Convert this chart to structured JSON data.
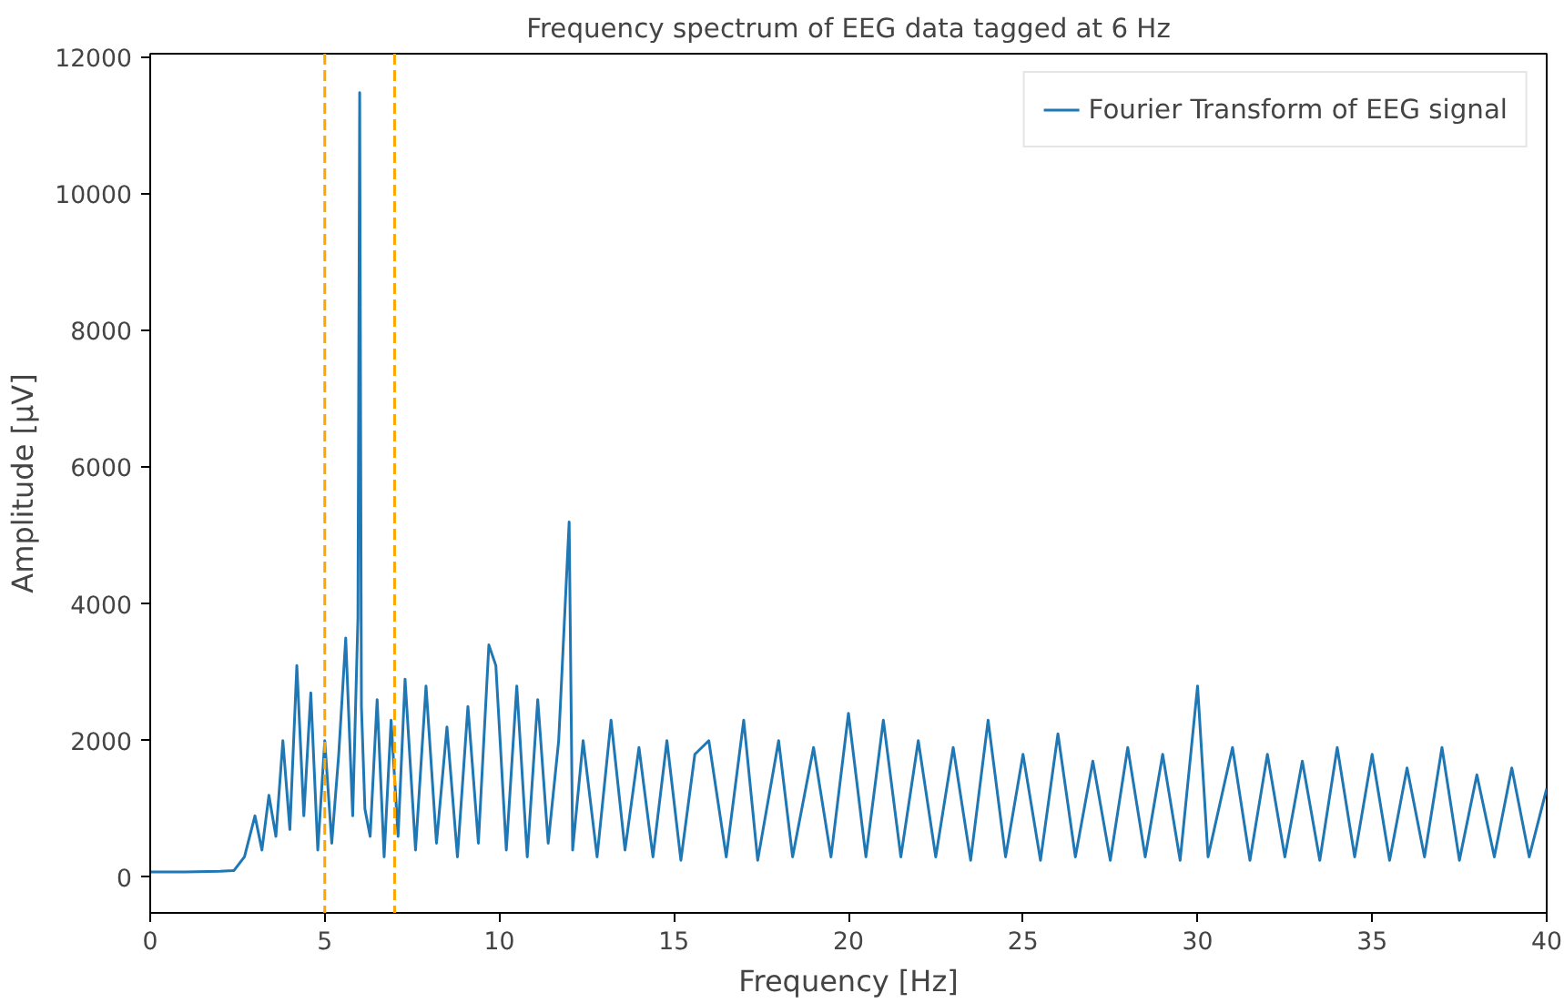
{
  "chart_data": {
    "type": "line",
    "title": "Frequency spectrum of EEG data tagged at 6 Hz",
    "xlabel": "Frequency [Hz]",
    "ylabel": "Amplitude [µV]",
    "x": [
      0,
      1,
      2,
      2.4,
      2.7,
      3,
      3.2,
      3.4,
      3.6,
      3.8,
      4,
      4.2,
      4.4,
      4.6,
      4.8,
      5,
      5.2,
      5.4,
      5.6,
      5.8,
      5.95,
      6,
      6.05,
      6.15,
      6.3,
      6.5,
      6.7,
      6.9,
      7.1,
      7.3,
      7.6,
      7.9,
      8.2,
      8.5,
      8.8,
      9.1,
      9.4,
      9.7,
      9.9,
      10.2,
      10.5,
      10.8,
      11.1,
      11.4,
      11.7,
      12,
      12.1,
      12.4,
      12.8,
      13.2,
      13.6,
      14,
      14.4,
      14.8,
      15.2,
      15.6,
      16,
      16.5,
      17,
      17.4,
      18,
      18.4,
      19,
      19.5,
      20,
      20.5,
      21,
      21.5,
      22,
      22.5,
      23,
      23.5,
      24,
      24.5,
      25,
      25.5,
      26,
      26.5,
      27,
      27.5,
      28,
      28.5,
      29,
      29.5,
      30,
      30.3,
      31,
      31.5,
      32,
      32.5,
      33,
      33.5,
      34,
      34.5,
      35,
      35.5,
      36,
      36.5,
      37,
      37.5,
      38,
      38.5,
      39,
      39.5,
      40
    ],
    "series": [
      {
        "name": "Fourier Transform of EEG signal",
        "color": "#1f77b4",
        "values": [
          80,
          80,
          90,
          100,
          300,
          900,
          400,
          1200,
          600,
          2000,
          700,
          3100,
          900,
          2700,
          400,
          2000,
          500,
          1800,
          3500,
          900,
          3800,
          11480,
          2500,
          1000,
          600,
          2600,
          300,
          2300,
          600,
          2900,
          400,
          2800,
          500,
          2200,
          300,
          2500,
          500,
          3400,
          3100,
          400,
          2800,
          300,
          2600,
          500,
          2000,
          5200,
          400,
          2000,
          300,
          2300,
          400,
          1900,
          300,
          2000,
          250,
          1800,
          2000,
          300,
          2300,
          250,
          2000,
          300,
          1900,
          300,
          2400,
          300,
          2300,
          300,
          2000,
          300,
          1900,
          250,
          2300,
          300,
          1800,
          250,
          2100,
          300,
          1700,
          250,
          1900,
          300,
          1800,
          250,
          2800,
          300,
          1900,
          250,
          1800,
          300,
          1700,
          250,
          1900,
          300,
          1800,
          250,
          1600,
          300,
          1900,
          250,
          1500,
          300,
          1600,
          300,
          1300
        ]
      }
    ],
    "xlim": [
      0,
      40
    ],
    "ylim": [
      -520,
      12050
    ],
    "xticks": [
      0,
      5,
      10,
      15,
      20,
      25,
      30,
      35,
      40
    ],
    "yticks": [
      0,
      2000,
      4000,
      6000,
      8000,
      10000,
      12000
    ],
    "ref_lines": [
      {
        "axis": "x",
        "value": 5,
        "color": "#ffa500",
        "line_style": "dashed"
      },
      {
        "axis": "x",
        "value": 7,
        "color": "#ffa500",
        "line_style": "dashed"
      }
    ],
    "legend": "top right",
    "grid": false
  }
}
